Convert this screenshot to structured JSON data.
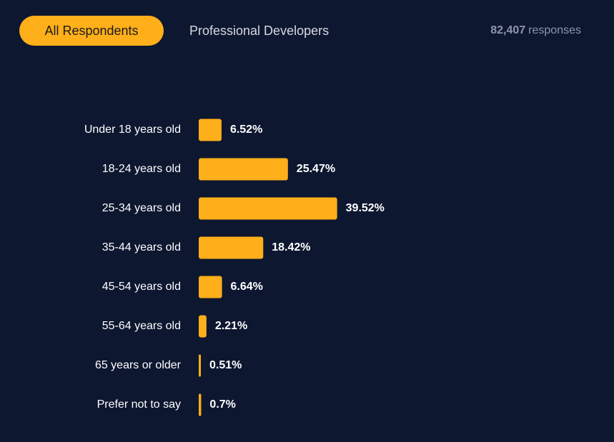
{
  "tabs": [
    {
      "label": "All Respondents",
      "active": true
    },
    {
      "label": "Professional Developers",
      "active": false
    }
  ],
  "responses": {
    "count": "82,407",
    "label": "responses"
  },
  "colors": {
    "background": "#0d1730",
    "accent": "#ffaf19",
    "text": "#ffffff",
    "muted": "#8e97a8"
  },
  "chart_data": {
    "type": "bar",
    "orientation": "horizontal",
    "categories": [
      "Under 18 years old",
      "18-24 years old",
      "25-34 years old",
      "35-44 years old",
      "45-54 years old",
      "55-64 years old",
      "65 years or older",
      "Prefer not to say"
    ],
    "values": [
      6.52,
      25.47,
      39.52,
      18.42,
      6.64,
      2.21,
      0.51,
      0.7
    ],
    "value_labels": [
      "6.52%",
      "25.47%",
      "39.52%",
      "18.42%",
      "6.64%",
      "2.21%",
      "0.51%",
      "0.7%"
    ],
    "title": "",
    "xlabel": "",
    "ylabel": "",
    "grid": false
  }
}
